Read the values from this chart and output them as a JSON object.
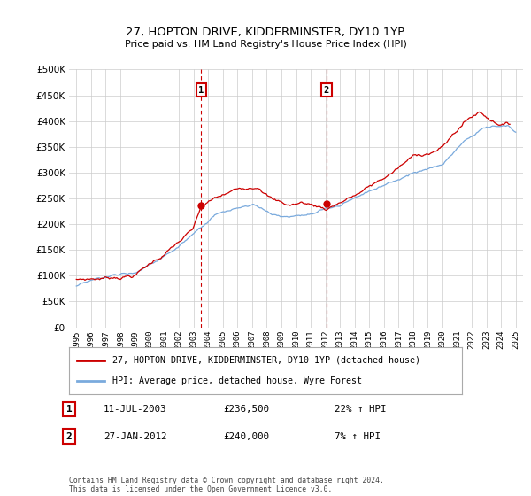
{
  "title": "27, HOPTON DRIVE, KIDDERMINSTER, DY10 1YP",
  "subtitle": "Price paid vs. HM Land Registry's House Price Index (HPI)",
  "ytick_values": [
    0,
    50000,
    100000,
    150000,
    200000,
    250000,
    300000,
    350000,
    400000,
    450000,
    500000
  ],
  "ylim": [
    0,
    500000
  ],
  "xlim_start": 1994.5,
  "xlim_end": 2025.5,
  "hpi_color": "#7aaadd",
  "price_color": "#cc0000",
  "marker1_year": 2003.53,
  "marker1_value": 236500,
  "marker1_label": "1",
  "marker1_date": "11-JUL-2003",
  "marker1_price": "£236,500",
  "marker1_hpi": "22% ↑ HPI",
  "marker2_year": 2012.08,
  "marker2_value": 240000,
  "marker2_label": "2",
  "marker2_date": "27-JAN-2012",
  "marker2_price": "£240,000",
  "marker2_hpi": "7% ↑ HPI",
  "legend_line1": "27, HOPTON DRIVE, KIDDERMINSTER, DY10 1YP (detached house)",
  "legend_line2": "HPI: Average price, detached house, Wyre Forest",
  "footnote": "Contains HM Land Registry data © Crown copyright and database right 2024.\nThis data is licensed under the Open Government Licence v3.0.",
  "background_color": "#ffffff",
  "grid_color": "#cccccc",
  "x_tick_years": [
    1995,
    1996,
    1997,
    1998,
    1999,
    2000,
    2001,
    2002,
    2003,
    2004,
    2005,
    2006,
    2007,
    2008,
    2009,
    2010,
    2011,
    2012,
    2013,
    2014,
    2015,
    2016,
    2017,
    2018,
    2019,
    2020,
    2021,
    2022,
    2023,
    2024,
    2025
  ]
}
